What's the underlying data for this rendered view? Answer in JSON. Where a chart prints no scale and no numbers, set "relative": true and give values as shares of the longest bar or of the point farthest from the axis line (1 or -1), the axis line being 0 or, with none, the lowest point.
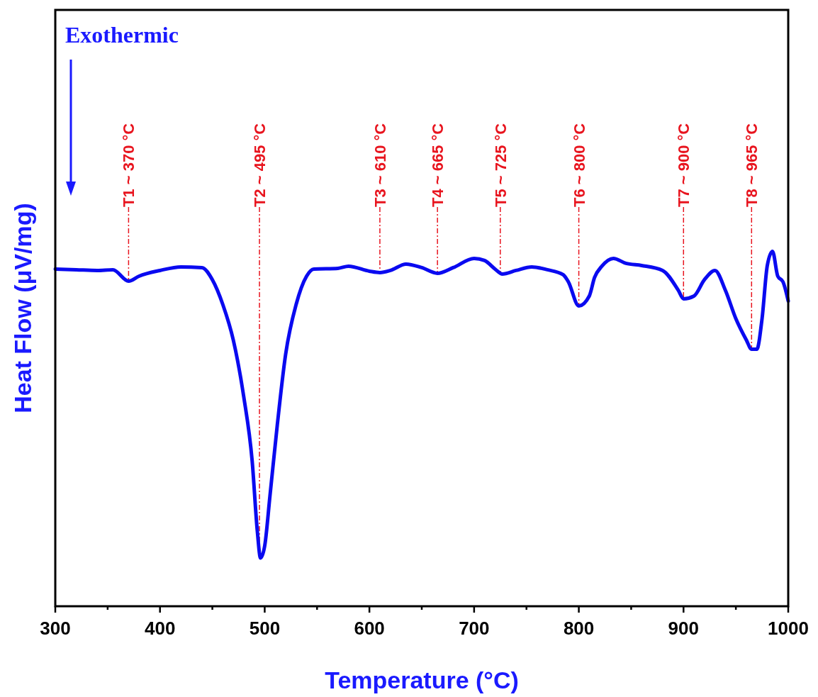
{
  "chart_data": {
    "type": "line",
    "xlabel": "Temperature (°C)",
    "ylabel": "Heat Flow (μV/mg)",
    "relative": true,
    "xlim": [
      300,
      1000
    ],
    "xticks": [
      300,
      {
        "value": 350,
        "label": null
      },
      400,
      {
        "value": 450,
        "label": null
      },
      500,
      {
        "value": 550,
        "label": null
      },
      600,
      {
        "value": 650,
        "label": null
      },
      700,
      {
        "value": 750,
        "label": null
      },
      800,
      {
        "value": 850,
        "label": null
      },
      900,
      {
        "value": 950,
        "label": null
      },
      1000
    ],
    "annotations": [
      "Exothermic"
    ],
    "ref_lines": [
      {
        "axis": "x",
        "value": 370,
        "label": "T1 ~ 370 °C",
        "color": "#e8141e",
        "line_style": "dashed"
      },
      {
        "axis": "x",
        "value": 495,
        "label": "T2 ~ 495 °C",
        "color": "#e8141e",
        "line_style": "dashed"
      },
      {
        "axis": "x",
        "value": 610,
        "label": "T3 ~ 610 °C",
        "color": "#e8141e",
        "line_style": "dashed"
      },
      {
        "axis": "x",
        "value": 665,
        "label": "T4 ~ 665 °C",
        "color": "#e8141e",
        "line_style": "dashed"
      },
      {
        "axis": "x",
        "value": 725,
        "label": "T5 ~ 725 °C",
        "color": "#e8141e",
        "line_style": "dashed"
      },
      {
        "axis": "x",
        "value": 800,
        "label": "T6 ~ 800 °C",
        "color": "#e8141e",
        "line_style": "dashed"
      },
      {
        "axis": "x",
        "value": 900,
        "label": "T7 ~ 900 °C",
        "color": "#e8141e",
        "line_style": "dashed"
      },
      {
        "axis": "x",
        "value": 965,
        "label": "T8 ~ 965 °C",
        "color": "#e8141e",
        "line_style": "dashed"
      }
    ],
    "series": [
      {
        "color": "#0a0af0",
        "x": [
          300,
          320,
          340,
          355,
          370,
          380,
          400,
          420,
          440,
          450,
          460,
          470,
          480,
          488,
          493,
          496,
          500,
          505,
          512,
          520,
          530,
          540,
          547,
          570,
          580,
          600,
          610,
          620,
          635,
          650,
          665,
          680,
          700,
          710,
          720,
          727,
          740,
          755,
          770,
          785,
          790,
          800,
          810,
          815,
          822,
          833,
          845,
          860,
          880,
          895,
          900,
          910,
          920,
          930,
          940,
          950,
          960,
          965,
          970,
          975,
          980,
          985,
          990,
          995,
          1000
        ],
        "values": [
          0.95,
          0.948,
          0.946,
          0.948,
          0.916,
          0.93,
          0.946,
          0.956,
          0.954,
          0.92,
          0.85,
          0.75,
          0.59,
          0.41,
          0.21,
          0.136,
          0.17,
          0.31,
          0.51,
          0.71,
          0.85,
          0.93,
          0.95,
          0.952,
          0.958,
          0.944,
          0.94,
          0.946,
          0.964,
          0.954,
          0.938,
          0.954,
          0.98,
          0.974,
          0.95,
          0.936,
          0.946,
          0.956,
          0.948,
          0.934,
          0.914,
          0.846,
          0.874,
          0.926,
          0.958,
          0.98,
          0.966,
          0.96,
          0.946,
          0.89,
          0.866,
          0.874,
          0.92,
          0.946,
          0.89,
          0.81,
          0.75,
          0.724,
          0.724,
          0.81,
          0.96,
          1,
          0.93,
          0.914,
          0.86
        ]
      }
    ],
    "grid": false,
    "line_style": "solid",
    "marker": "none"
  }
}
